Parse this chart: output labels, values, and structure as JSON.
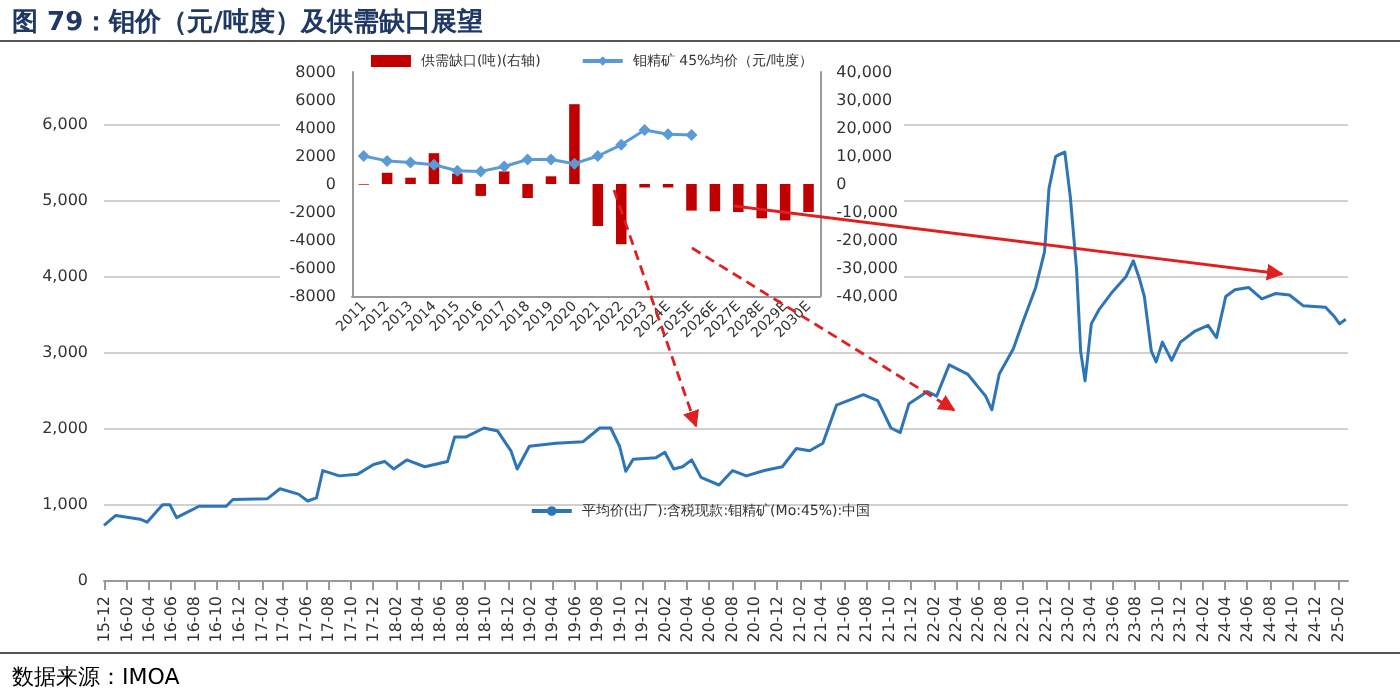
{
  "chart_data": [
    {
      "type": "line",
      "title": "图 79：钼价（元/吨度）及供需缺口展望",
      "annotations": [
        "数据来源：IMOA"
      ],
      "x": [
        "2015-12-01",
        "2016-01-02",
        "2016-03-08",
        "2016-03-27",
        "2016-05-08",
        "2016-05-28",
        "2016-06-15",
        "2016-08-15",
        "2016-10-28",
        "2016-11-15",
        "2017-02-17",
        "2017-03-23",
        "2017-05-12",
        "2017-06-06",
        "2017-06-30",
        "2017-07-17",
        "2017-08-31",
        "2017-10-19",
        "2017-12-02",
        "2018-01-01",
        "2018-01-26",
        "2018-03-02",
        "2018-04-20",
        "2018-06-21",
        "2018-07-10",
        "2018-08-09",
        "2018-09-28",
        "2018-11-04",
        "2018-12-10",
        "2018-12-27",
        "2019-01-29",
        "2019-04-11",
        "2019-06-24",
        "2019-08-08",
        "2019-09-07",
        "2019-10-01",
        "2019-10-18",
        "2019-11-07",
        "2020-01-08",
        "2020-02-01",
        "2020-02-25",
        "2020-03-20",
        "2020-04-14",
        "2020-05-09",
        "2020-06-27",
        "2020-08-03",
        "2020-09-09",
        "2020-10-28",
        "2020-12-16",
        "2021-01-23",
        "2021-02-28",
        "2021-04-05",
        "2021-05-12",
        "2021-07-24",
        "2021-09-01",
        "2021-10-07",
        "2021-11-01",
        "2021-11-25",
        "2022-01-14",
        "2022-02-08",
        "2022-03-14",
        "2022-05-03",
        "2022-06-21",
        "2022-07-08",
        "2022-07-28",
        "2022-09-04",
        "2022-09-28",
        "2022-11-04",
        "2022-11-28",
        "2022-12-10",
        "2022-12-28",
        "2023-01-12",
        "2023-01-22",
        "2023-02-06",
        "2023-02-23",
        "2023-03-06",
        "2023-03-18",
        "2023-04-04",
        "2023-04-24",
        "2023-05-31",
        "2023-07-07",
        "2023-07-27",
        "2023-08-13",
        "2023-08-26",
        "2023-09-14",
        "2023-09-27",
        "2023-10-14",
        "2023-11-08",
        "2023-12-02",
        "2024-01-09",
        "2024-02-15",
        "2024-03-09",
        "2024-04-03",
        "2024-04-28",
        "2024-06-04",
        "2024-07-10",
        "2024-08-17",
        "2024-09-23",
        "2024-10-30",
        "2024-12-30",
        "2025-01-24",
        "2025-02-06",
        "2025-02-23"
      ],
      "series": [
        {
          "name": "平均价(出厂):含税现款:钼精矿(Mo:45%):中国",
          "color": "#2e75b6",
          "values": [
            720,
            850,
            800,
            760,
            990,
            990,
            820,
            970,
            970,
            1060,
            1070,
            1200,
            1130,
            1040,
            1080,
            1440,
            1370,
            1390,
            1520,
            1560,
            1460,
            1580,
            1490,
            1560,
            1880,
            1880,
            2000,
            1960,
            1700,
            1460,
            1760,
            1800,
            1820,
            2000,
            2000,
            1760,
            1430,
            1590,
            1610,
            1680,
            1460,
            1490,
            1580,
            1350,
            1250,
            1440,
            1370,
            1440,
            1490,
            1730,
            1700,
            1800,
            2300,
            2440,
            2360,
            2000,
            1940,
            2320,
            2480,
            2420,
            2830,
            2710,
            2420,
            2240,
            2710,
            3040,
            3370,
            3850,
            4320,
            5150,
            5570,
            5610,
            5630,
            5040,
            4080,
            3010,
            2620,
            3370,
            3550,
            3790,
            3990,
            4200,
            3960,
            3730,
            3010,
            2870,
            3130,
            2890,
            3130,
            3270,
            3350,
            3190,
            3730,
            3820,
            3850,
            3700,
            3770,
            3750,
            3610,
            3590,
            3460,
            3370,
            3430
          ]
        }
      ],
      "xlim": [
        "2015-12-01",
        "2025-03-01"
      ],
      "xticks": [
        {
          "value": "2015-12",
          "label": "15-12"
        },
        {
          "value": "2016-02",
          "label": "16-02"
        },
        {
          "value": "2016-04",
          "label": "16-04"
        },
        {
          "value": "2016-06",
          "label": "16-06"
        },
        {
          "value": "2016-08",
          "label": "16-08"
        },
        {
          "value": "2016-10",
          "label": "16-10"
        },
        {
          "value": "2016-12",
          "label": "16-12"
        },
        {
          "value": "2017-02",
          "label": "17-02"
        },
        {
          "value": "2017-04",
          "label": "17-04"
        },
        {
          "value": "2017-06",
          "label": "17-06"
        },
        {
          "value": "2017-08",
          "label": "17-08"
        },
        {
          "value": "2017-10",
          "label": "17-10"
        },
        {
          "value": "2017-12",
          "label": "17-12"
        },
        {
          "value": "2018-02",
          "label": "18-02"
        },
        {
          "value": "2018-04",
          "label": "18-04"
        },
        {
          "value": "2018-06",
          "label": "18-06"
        },
        {
          "value": "2018-08",
          "label": "18-08"
        },
        {
          "value": "2018-10",
          "label": "18-10"
        },
        {
          "value": "2018-12",
          "label": "18-12"
        },
        {
          "value": "2019-02",
          "label": "19-02"
        },
        {
          "value": "2019-04",
          "label": "19-04"
        },
        {
          "value": "2019-06",
          "label": "19-06"
        },
        {
          "value": "2019-08",
          "label": "19-08"
        },
        {
          "value": "2019-10",
          "label": "19-10"
        },
        {
          "value": "2019-12",
          "label": "19-12"
        },
        {
          "value": "2020-02",
          "label": "20-02"
        },
        {
          "value": "2020-04",
          "label": "20-04"
        },
        {
          "value": "2020-06",
          "label": "20-06"
        },
        {
          "value": "2020-08",
          "label": "20-08"
        },
        {
          "value": "2020-10",
          "label": "20-10"
        },
        {
          "value": "2020-12",
          "label": "20-12"
        },
        {
          "value": "2021-02",
          "label": "21-02"
        },
        {
          "value": "2021-04",
          "label": "21-04"
        },
        {
          "value": "2021-06",
          "label": "21-06"
        },
        {
          "value": "2021-08",
          "label": "21-08"
        },
        {
          "value": "2021-10",
          "label": "21-10"
        },
        {
          "value": "2021-12",
          "label": "21-12"
        },
        {
          "value": "2022-02",
          "label": "22-02"
        },
        {
          "value": "2022-04",
          "label": "22-04"
        },
        {
          "value": "2022-06",
          "label": "22-06"
        },
        {
          "value": "2022-08",
          "label": "22-08"
        },
        {
          "value": "2022-10",
          "label": "22-10"
        },
        {
          "value": "2022-12",
          "label": "22-12"
        },
        {
          "value": "2023-02",
          "label": "23-02"
        },
        {
          "value": "2023-04",
          "label": "23-04"
        },
        {
          "value": "2023-06",
          "label": "23-06"
        },
        {
          "value": "2023-08",
          "label": "23-08"
        },
        {
          "value": "2023-10",
          "label": "23-10"
        },
        {
          "value": "2023-12",
          "label": "23-12"
        },
        {
          "value": "2024-02",
          "label": "24-02"
        },
        {
          "value": "2024-04",
          "label": "24-04"
        },
        {
          "value": "2024-06",
          "label": "24-06"
        },
        {
          "value": "2024-08",
          "label": "24-08"
        },
        {
          "value": "2024-10",
          "label": "24-10"
        },
        {
          "value": "2024-12",
          "label": "24-12"
        },
        {
          "value": "2025-02",
          "label": "25-02"
        }
      ],
      "ylim": [
        0,
        6000
      ],
      "yticks": [
        0,
        {
          "value": 1000,
          "label": "1,000"
        },
        {
          "value": 2000,
          "label": "2,000"
        },
        {
          "value": 3000,
          "label": "3,000"
        },
        {
          "value": 4000,
          "label": "4,000"
        },
        {
          "value": 5000,
          "label": "5,000"
        },
        {
          "value": 6000,
          "label": "6,000"
        }
      ],
      "grid": "y",
      "legend": "bottom",
      "marker": "none"
    },
    {
      "type": "bar",
      "categories": [
        "2011",
        "2012",
        "2013",
        "2014",
        "2015",
        "2016",
        "2017",
        "2018",
        "2019",
        "2020",
        "2021",
        "2022",
        "2023",
        "2024E",
        "2025E",
        "2026E",
        "2027E",
        "2028E",
        "2029E",
        "2030E"
      ],
      "series": [
        {
          "name": "供需缺口(吨)(右轴)",
          "color": "#c00000",
          "axis": "y2",
          "values": [
            -250,
            4000,
            2250,
            11000,
            3750,
            -4250,
            4500,
            -5000,
            2750,
            28500,
            -15000,
            -21500,
            -1250,
            -1250,
            -9500,
            -9750,
            -10000,
            -12250,
            -13000,
            -10000
          ]
        },
        {
          "name": "钼精矿 45%均价（元/吨度）",
          "type": "line",
          "color": "#5b9bd5",
          "values": [
            2000,
            1650,
            1530,
            1380,
            950,
            900,
            1250,
            1750,
            1750,
            1450,
            2000,
            2800,
            3850,
            3550,
            3500,
            null,
            null,
            null,
            null,
            null
          ]
        }
      ],
      "ylim": [
        -8000,
        8000
      ],
      "yticks": [
        -8000,
        -6000,
        -4000,
        -2000,
        0,
        2000,
        4000,
        6000,
        8000
      ],
      "y2lim": [
        -40000,
        40000
      ],
      "y2ticks": [
        {
          "value": -40000,
          "label": "-40,000"
        },
        {
          "value": -30000,
          "label": "-30,000"
        },
        {
          "value": -20000,
          "label": "-20,000"
        },
        {
          "value": -10000,
          "label": "-10,000"
        },
        0,
        {
          "value": 10000,
          "label": "10,000"
        },
        {
          "value": 20000,
          "label": "20,000"
        },
        {
          "value": 30000,
          "label": "30,000"
        },
        {
          "value": 40000,
          "label": "40,000"
        }
      ],
      "legend": "top",
      "marker": "diamond"
    }
  ]
}
